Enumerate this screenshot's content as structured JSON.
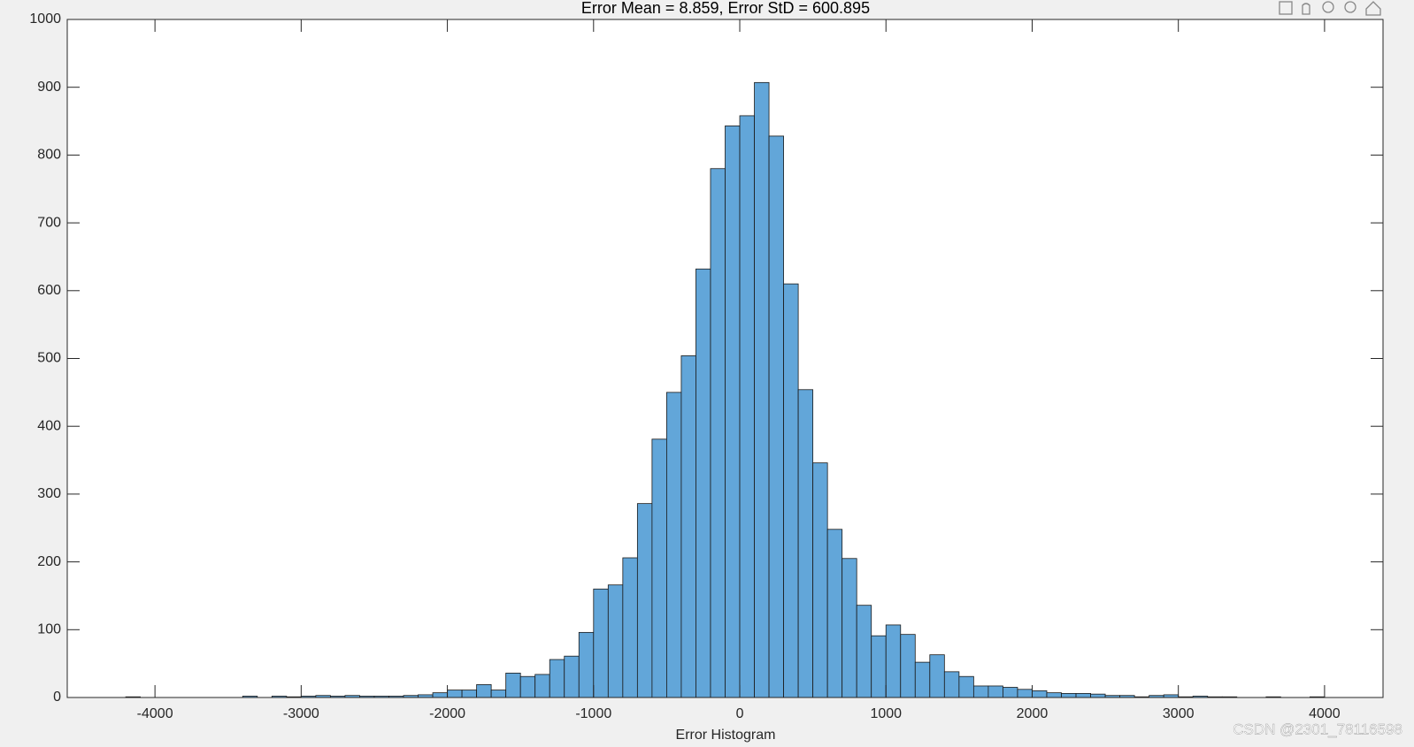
{
  "chart_data": {
    "type": "histogram",
    "title": "Error Mean = 8.859, Error StD = 600.895",
    "xlabel": "Error Histogram",
    "watermark": "CSDN @2301_78116598",
    "color": "#62a6d9",
    "edge_color": "#1a1a1a",
    "bins": [
      -4200,
      -4100,
      -4000,
      -3900,
      -3800,
      -3700,
      -3600,
      -3500,
      -3400,
      -3300,
      -3200,
      -3100,
      -3000,
      -2900,
      -2800,
      -2700,
      -2600,
      -2500,
      -2400,
      -2300,
      -2200,
      -2100,
      -2000,
      -1900,
      -1800,
      -1700,
      -1600,
      -1500,
      -1400,
      -1300,
      -1200,
      -1100,
      -1000,
      -900,
      -800,
      -700,
      -600,
      -500,
      -400,
      -300,
      -200,
      -100,
      0,
      100,
      200,
      300,
      400,
      500,
      600,
      700,
      800,
      900,
      1000,
      1100,
      1200,
      1300,
      1400,
      1500,
      1600,
      1700,
      1800,
      1900,
      2000,
      2100,
      2200,
      2300,
      2400,
      2500,
      2600,
      2700,
      2800,
      2900,
      3000,
      3100,
      3200,
      3300,
      3400,
      3500,
      3600,
      3700,
      3800,
      3900,
      4000
    ],
    "values": [
      1,
      0,
      0,
      0,
      0,
      0,
      0,
      0,
      2,
      0,
      2,
      1,
      2,
      3,
      2,
      3,
      2,
      2,
      2,
      3,
      4,
      7,
      11,
      11,
      19,
      11,
      36,
      31,
      34,
      56,
      61,
      96,
      160,
      166,
      206,
      286,
      381,
      450,
      504,
      632,
      780,
      843,
      858,
      907,
      828,
      610,
      454,
      346,
      248,
      205,
      136,
      91,
      107,
      93,
      52,
      63,
      38,
      31,
      17,
      17,
      15,
      12,
      10,
      7,
      6,
      6,
      5,
      3,
      3,
      1,
      3,
      4,
      1,
      2,
      1,
      1,
      0,
      0,
      1,
      0,
      0,
      1
    ],
    "xlim": [
      -4600,
      4400
    ],
    "ylim": [
      0,
      1000
    ],
    "xticks": [
      -4000,
      -3000,
      -2000,
      -1000,
      0,
      1000,
      2000,
      3000,
      4000
    ],
    "yticks": [
      0,
      100,
      200,
      300,
      400,
      500,
      600,
      700,
      800,
      900,
      1000
    ]
  }
}
